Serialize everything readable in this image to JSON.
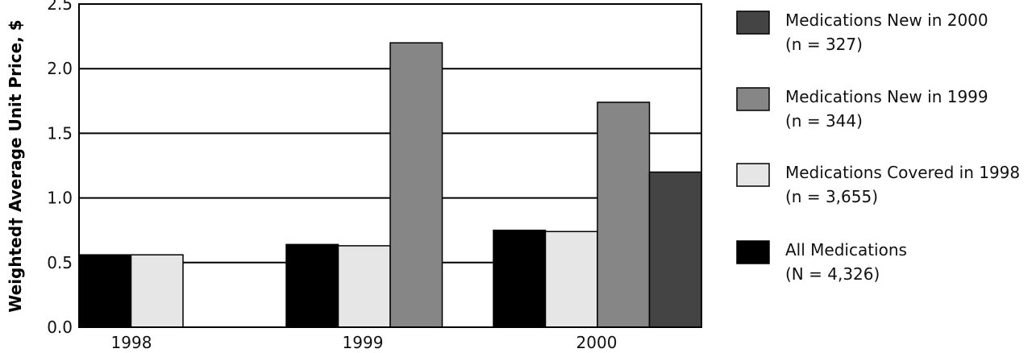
{
  "chart_data": {
    "type": "bar",
    "title": "",
    "xlabel": "",
    "ylabel": "Weighted† Average Unit Price, $",
    "ylim": [
      0,
      2.5
    ],
    "yticks": [
      "0.0",
      "0.5",
      "1.0",
      "1.5",
      "2.0",
      "2.5"
    ],
    "categories": [
      "1998",
      "1999",
      "2000"
    ],
    "grid": "horizontal",
    "legend_position": "right",
    "series": [
      {
        "name": "All Medications",
        "count_label": "(N = 4,326)",
        "color": "#000000",
        "values": [
          0.56,
          0.64,
          0.75
        ]
      },
      {
        "name": "Medications Covered in 1998",
        "count_label": "(n = 3,655)",
        "color": "#e6e6e6",
        "values": [
          0.56,
          0.63,
          0.74
        ]
      },
      {
        "name": "Medications New in 1999",
        "count_label": "(n = 344)",
        "color": "#868686",
        "values": [
          null,
          2.2,
          1.74
        ]
      },
      {
        "name": "Medications New in 2000",
        "count_label": "(n = 327)",
        "color": "#444444",
        "values": [
          null,
          null,
          1.2
        ]
      }
    ],
    "legend_order": [
      3,
      2,
      1,
      0
    ]
  }
}
